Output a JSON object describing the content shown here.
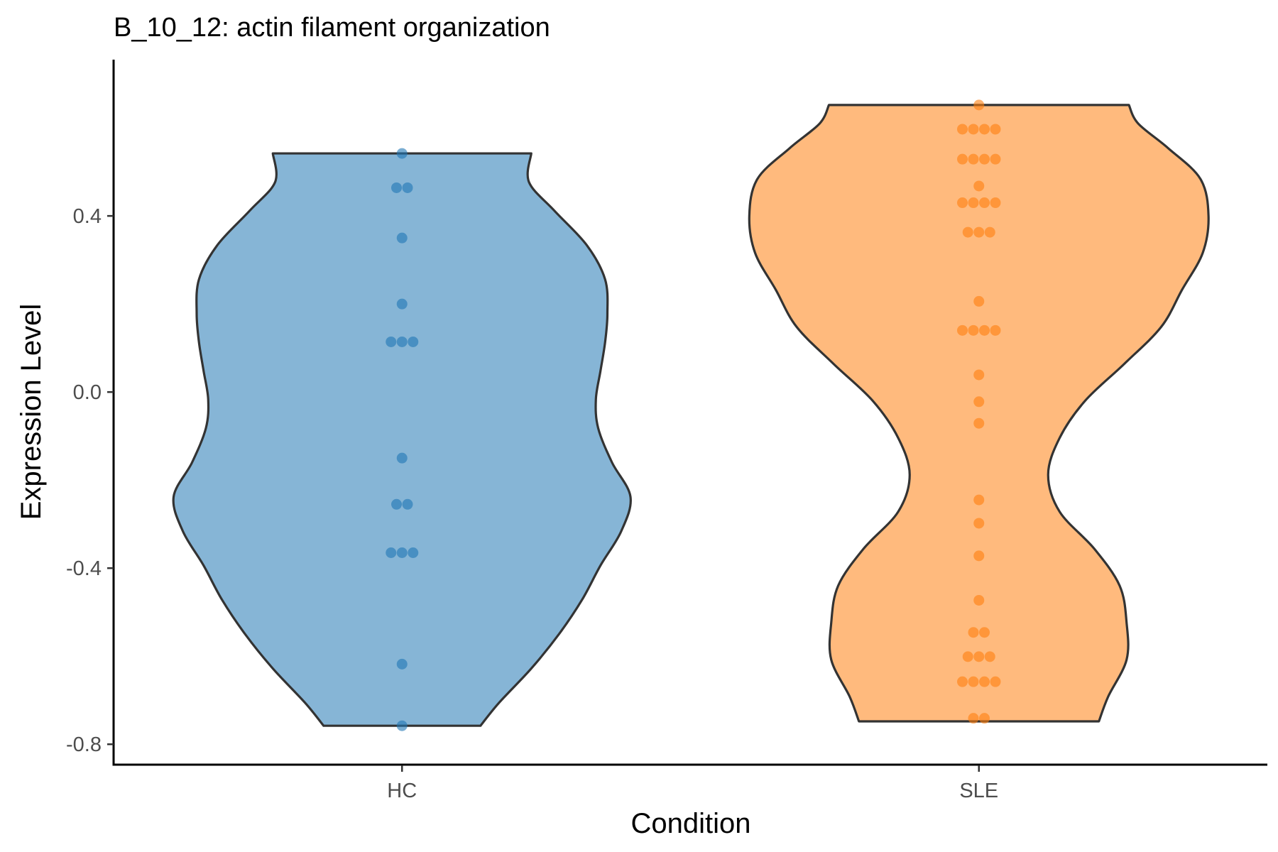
{
  "chart_data": {
    "type": "violin",
    "title": "B_10_12: actin filament organization",
    "xlabel": "Condition",
    "ylabel": "Expression Level",
    "categories": [
      "HC",
      "SLE"
    ],
    "ylim": [
      -0.848,
      0.755
    ],
    "yticks": [
      -0.8,
      -0.4,
      0.0,
      0.4
    ],
    "ytick_labels": [
      "-0.8",
      "-0.4",
      "0.0",
      "0.4"
    ],
    "grid": false,
    "legend": "none",
    "series": [
      {
        "name": "HC",
        "fill": "#1f77b4",
        "point_color": "#1f77b4",
        "y_min": -0.758,
        "y_max": 0.542,
        "points": [
          0.542,
          0.464,
          0.464,
          0.35,
          0.2,
          0.114,
          0.114,
          0.114,
          -0.15,
          -0.255,
          -0.255,
          -0.365,
          -0.365,
          -0.365,
          -0.618,
          -0.758
        ]
      },
      {
        "name": "SLE",
        "fill": "#ff7f0e",
        "point_color": "#ff7f0e",
        "y_min": -0.748,
        "y_max": 0.652,
        "points": [
          0.652,
          0.597,
          0.597,
          0.597,
          0.597,
          0.529,
          0.529,
          0.529,
          0.529,
          0.468,
          0.43,
          0.43,
          0.43,
          0.43,
          0.363,
          0.363,
          0.363,
          0.206,
          0.14,
          0.14,
          0.14,
          0.14,
          0.039,
          -0.022,
          -0.071,
          -0.245,
          -0.298,
          -0.372,
          -0.473,
          -0.546,
          -0.546,
          -0.601,
          -0.601,
          -0.601,
          -0.658,
          -0.658,
          -0.658,
          -0.658,
          -0.741,
          -0.741
        ]
      }
    ]
  }
}
